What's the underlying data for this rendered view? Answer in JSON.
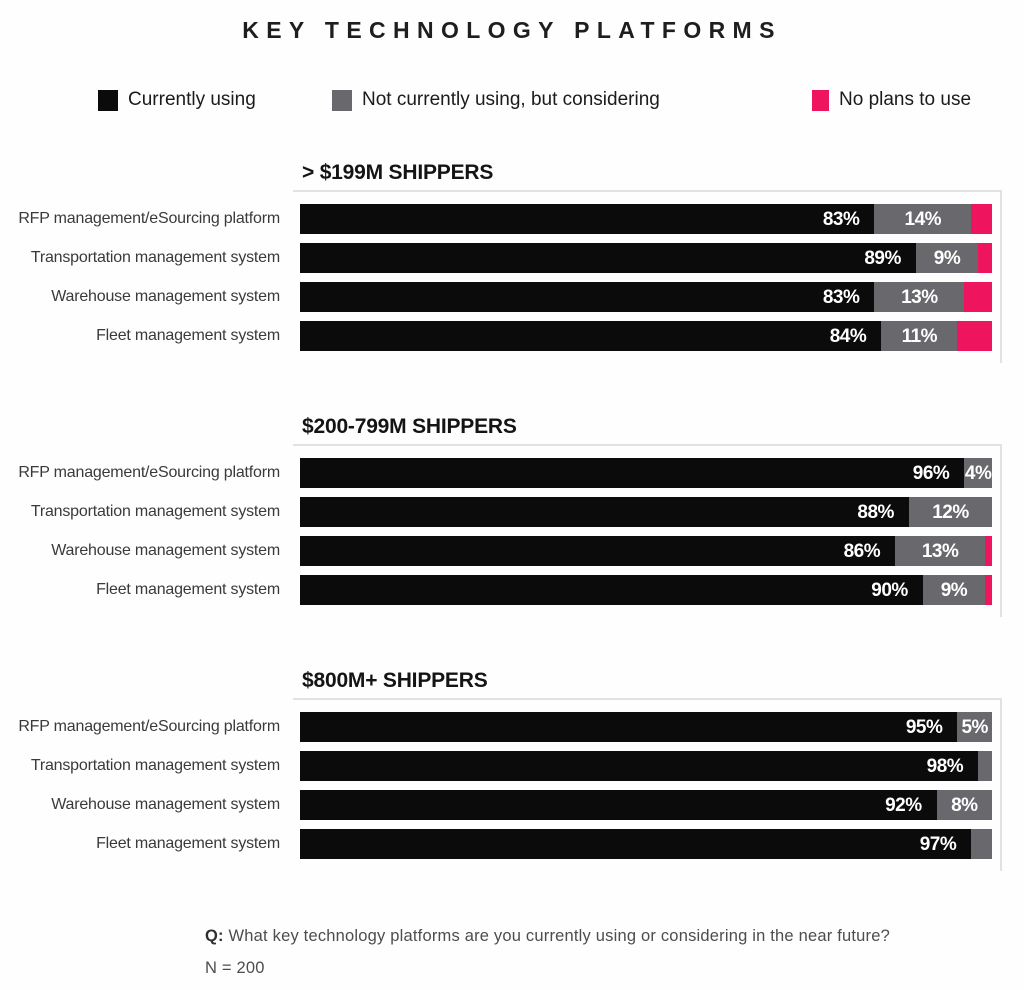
{
  "title": "KEY TECHNOLOGY PLATFORMS",
  "legend": [
    {
      "key": "currently-using",
      "label": "Currently using",
      "color": "#0b0b0b"
    },
    {
      "key": "considering",
      "label": "Not currently using, but considering",
      "color": "#69686d"
    },
    {
      "key": "no-plans",
      "label": "No plans to use",
      "color": "#EE145D"
    }
  ],
  "chart_data": {
    "type": "bar",
    "orientation": "horizontal",
    "stacked": true,
    "unit": "percent",
    "axis_max": 100,
    "segment_keys": [
      "currently-using",
      "considering",
      "no-plans"
    ],
    "series_names": [
      "Currently using",
      "Not currently using, but considering",
      "No plans to use"
    ],
    "groups": [
      {
        "title": "> $199M SHIPPERS",
        "rows": [
          {
            "category": "RFP management/eSourcing platform",
            "values": [
              83,
              14,
              3
            ],
            "labels": [
              "83%",
              "14%",
              ""
            ]
          },
          {
            "category": "Transportation management system",
            "values": [
              89,
              9,
              2
            ],
            "labels": [
              "89%",
              "9%",
              ""
            ]
          },
          {
            "category": "Warehouse management system",
            "values": [
              83,
              13,
              4
            ],
            "labels": [
              "83%",
              "13%",
              ""
            ]
          },
          {
            "category": "Fleet management system",
            "values": [
              84,
              11,
              5
            ],
            "labels": [
              "84%",
              "11%",
              ""
            ]
          }
        ]
      },
      {
        "title": "$200-799M SHIPPERS",
        "rows": [
          {
            "category": "RFP management/eSourcing platform",
            "values": [
              96,
              4,
              0
            ],
            "labels": [
              "96%",
              "4%",
              ""
            ]
          },
          {
            "category": "Transportation management system",
            "values": [
              88,
              12,
              0
            ],
            "labels": [
              "88%",
              "12%",
              ""
            ]
          },
          {
            "category": "Warehouse management system",
            "values": [
              86,
              13,
              1
            ],
            "labels": [
              "86%",
              "13%",
              ""
            ]
          },
          {
            "category": "Fleet management system",
            "values": [
              90,
              9,
              1
            ],
            "labels": [
              "90%",
              "9%",
              ""
            ]
          }
        ]
      },
      {
        "title": "$800M+ SHIPPERS",
        "rows": [
          {
            "category": "RFP management/eSourcing platform",
            "values": [
              95,
              5,
              0
            ],
            "labels": [
              "95%",
              "5%",
              ""
            ]
          },
          {
            "category": "Transportation management system",
            "values": [
              98,
              2,
              0
            ],
            "labels": [
              "98%",
              "",
              ""
            ]
          },
          {
            "category": "Warehouse management system",
            "values": [
              92,
              8,
              0
            ],
            "labels": [
              "92%",
              "8%",
              ""
            ]
          },
          {
            "category": "Fleet management system",
            "values": [
              97,
              3,
              0
            ],
            "labels": [
              "97%",
              "",
              ""
            ]
          }
        ]
      }
    ]
  },
  "footer": {
    "q_prefix": "Q:",
    "question": " What key technology platforms are you currently using or considering in the near future?",
    "n_label": "N = 200"
  }
}
